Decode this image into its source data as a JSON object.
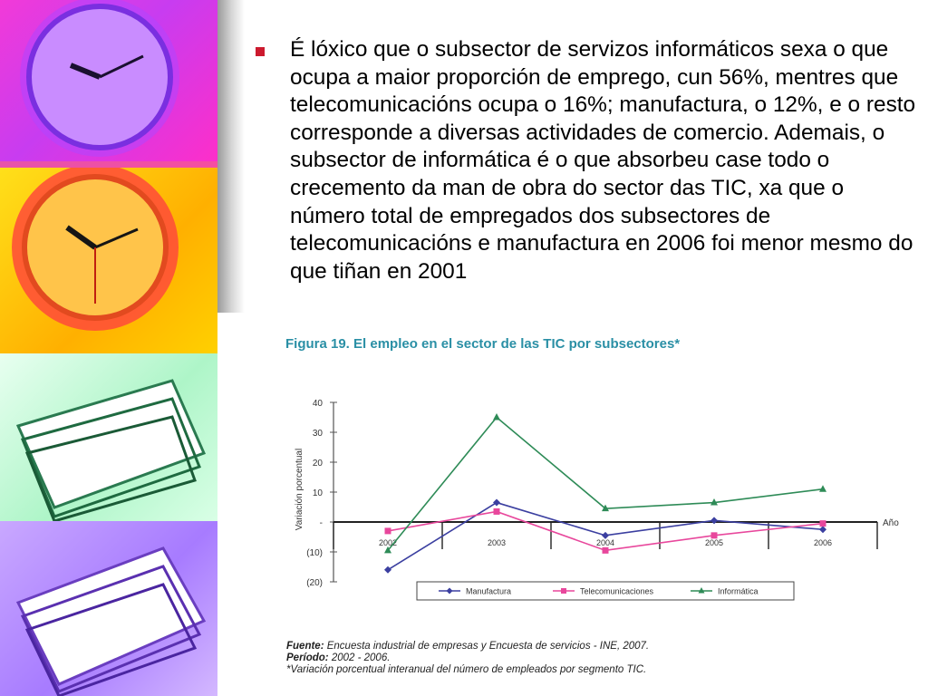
{
  "slide": {
    "bullet_text": "É lóxico que o subsector de servizos informáticos sexa o que ocupa a maior proporción de emprego, cun 56%, mentres que telecomunicacións ocupa o 16%; manufactura, o 12%, e o resto corresponde a diversas actividades de comercio. Ademais, o subsector de informática é o que absorbeu case todo o crecemento da man de obra do sector das TIC, xa que o número total de empregados dos subsectores de telecomunicacións e manufactura en 2006 foi menor mesmo do que tiñan en 2001"
  },
  "figure": {
    "title": "Figura 19. El empleo en el sector de las TIC por subsectores*",
    "source_label": "Fuente:",
    "source_text": " Encuesta industrial de empresas y Encuesta de servicios - INE, 2007.",
    "period_label": "Período:",
    "period_text": " 2002 - 2006.",
    "footnote": "*Variación porcentual interanual del número de empleados por segmento TIC."
  },
  "chart_data": {
    "type": "line",
    "x": [
      2002,
      2003,
      2004,
      2005,
      2006
    ],
    "x_tick_labels": [
      "2002",
      "2003",
      "2004",
      "2005",
      "2006"
    ],
    "xlabel": "Año",
    "ylabel": "Variación porcentual",
    "ylim": [
      -20,
      40
    ],
    "y_ticks": [
      40,
      30,
      20,
      10,
      0,
      -10,
      -20
    ],
    "y_tick_labels": [
      "40",
      "30",
      "20",
      "10",
      "-",
      "(10)",
      "(20)"
    ],
    "grid": false,
    "legend_position": "bottom",
    "series": [
      {
        "name": "Manufactura",
        "values": [
          -16,
          6.5,
          -4.5,
          0.5,
          -2.5
        ],
        "color": "#3b3fa0",
        "marker": "diamond"
      },
      {
        "name": "Telecomunicaciones",
        "values": [
          -3,
          3.5,
          -9.5,
          -4.5,
          -0.5
        ],
        "color": "#e8479c",
        "marker": "square"
      },
      {
        "name": "Informática",
        "values": [
          -9.5,
          35,
          4.5,
          6.5,
          11
        ],
        "color": "#2e8b57",
        "marker": "triangle"
      }
    ]
  }
}
